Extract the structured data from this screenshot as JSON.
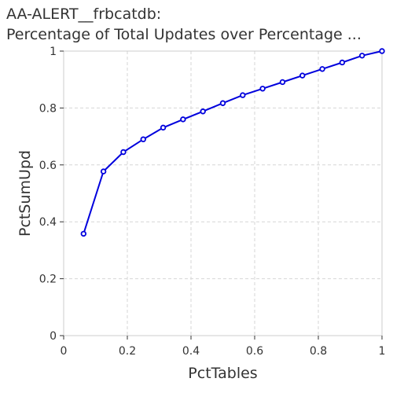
{
  "chart_data": {
    "type": "line",
    "title_line1": "AA-ALERT__frbcatdb:",
    "title_line2": "Percentage of Total Updates over Percentage ...",
    "xlabel": "PctTables",
    "ylabel": "PctSumUpd",
    "xlim": [
      0,
      1
    ],
    "ylim": [
      0,
      1
    ],
    "xticks": [
      "0",
      "0.2",
      "0.4",
      "0.6",
      "0.8",
      "1"
    ],
    "yticks": [
      "0",
      "0.2",
      "0.4",
      "0.6",
      "0.8",
      "1"
    ],
    "grid": true,
    "line_color": "#0000dd",
    "series": [
      {
        "x": [
          0.0625,
          0.125,
          0.1875,
          0.25,
          0.3125,
          0.375,
          0.4375,
          0.5,
          0.5625,
          0.625,
          0.6875,
          0.75,
          0.8125,
          0.875,
          0.9375,
          1.0
        ],
        "values": [
          0.358,
          0.577,
          0.645,
          0.69,
          0.731,
          0.76,
          0.788,
          0.817,
          0.845,
          0.868,
          0.891,
          0.914,
          0.937,
          0.96,
          0.984,
          1.0
        ]
      }
    ]
  }
}
